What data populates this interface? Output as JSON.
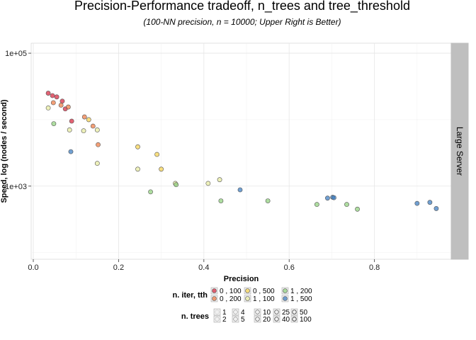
{
  "chart_data": {
    "type": "scatter",
    "title": "Precision-Performance tradeoff, n_trees and tree_threshold",
    "subtitle": "(100-NN precision, n = 10000; Upper Right is Better)",
    "xlabel": "Precision",
    "ylabel": "Speed, log (nodes / second)",
    "facet_label": "Large Server",
    "x_ticks": [
      "0.0",
      "0.2",
      "0.4",
      "0.6",
      "0.8"
    ],
    "x_tick_values": [
      0.0,
      0.2,
      0.4,
      0.6,
      0.8
    ],
    "y_ticks": [
      "1e+03",
      "1e+05"
    ],
    "y_tick_values": [
      1000,
      100000
    ],
    "xlim": [
      -0.005,
      0.98
    ],
    "ylim_log10": [
      1.9,
      5.15
    ],
    "grid": true,
    "colors": {
      "0,100": "#d7263d",
      "0,200": "#ee7a43",
      "0,500": "#f6d24f",
      "1,100": "#e8eca0",
      "1,200": "#8fd07c",
      "1,500": "#3a7cc0"
    },
    "series": [
      {
        "key": "0,100",
        "name": "0 ,  100",
        "points": [
          [
            0.035,
            25000
          ],
          [
            0.045,
            23000
          ],
          [
            0.055,
            22000
          ],
          [
            0.068,
            19000
          ],
          [
            0.075,
            14500
          ],
          [
            0.09,
            9500
          ]
        ]
      },
      {
        "key": "0,200",
        "name": "0 ,  200",
        "points": [
          [
            0.047,
            18000
          ],
          [
            0.065,
            16500
          ],
          [
            0.082,
            15500
          ],
          [
            0.12,
            11000
          ],
          [
            0.14,
            8000
          ],
          [
            0.152,
            4200
          ]
        ]
      },
      {
        "key": "0,500",
        "name": "0 ,  500",
        "points": [
          [
            0.13,
            10000
          ],
          [
            0.245,
            3900
          ],
          [
            0.29,
            3000
          ],
          [
            0.3,
            1800
          ]
        ]
      },
      {
        "key": "1,100",
        "name": "1 ,  100",
        "points": [
          [
            0.035,
            15000
          ],
          [
            0.085,
            7000
          ],
          [
            0.118,
            6800
          ],
          [
            0.15,
            7000
          ],
          [
            0.15,
            2200
          ],
          [
            0.245,
            1800
          ],
          [
            0.333,
            1100
          ],
          [
            0.41,
            1100
          ],
          [
            0.437,
            1250
          ]
        ]
      },
      {
        "key": "1,200",
        "name": "1 ,  200",
        "points": [
          [
            0.048,
            8700
          ],
          [
            0.275,
            820
          ],
          [
            0.335,
            1050
          ],
          [
            0.44,
            600
          ],
          [
            0.55,
            600
          ],
          [
            0.665,
            530
          ],
          [
            0.735,
            530
          ],
          [
            0.76,
            450
          ]
        ]
      },
      {
        "key": "1,500",
        "name": "1 ,  500",
        "points": [
          [
            0.088,
            3300
          ],
          [
            0.485,
            880
          ],
          [
            0.69,
            660
          ],
          [
            0.702,
            680
          ],
          [
            0.705,
            670
          ],
          [
            0.9,
            550
          ],
          [
            0.93,
            570
          ],
          [
            0.945,
            460
          ]
        ]
      }
    ],
    "legend_color_title": "n. iter, tth",
    "legend_color_entries": [
      {
        "key": "0,100",
        "label": "0 ,  100"
      },
      {
        "key": "0,200",
        "label": "0 ,  200"
      },
      {
        "key": "0,500",
        "label": "0 ,  500"
      },
      {
        "key": "1,100",
        "label": "1 ,  100"
      },
      {
        "key": "1,200",
        "label": "1 ,  200"
      },
      {
        "key": "1,500",
        "label": "1 ,  500"
      }
    ],
    "legend_size_title": "n. trees",
    "legend_size_entries": [
      "1",
      "2",
      "4",
      "5",
      "10",
      "20",
      "25",
      "40",
      "50",
      "100"
    ],
    "legend_size_widths": [
      0.15,
      0.25,
      0.35,
      0.45,
      0.55,
      0.65,
      0.75,
      0.85,
      0.95,
      1.05
    ]
  }
}
